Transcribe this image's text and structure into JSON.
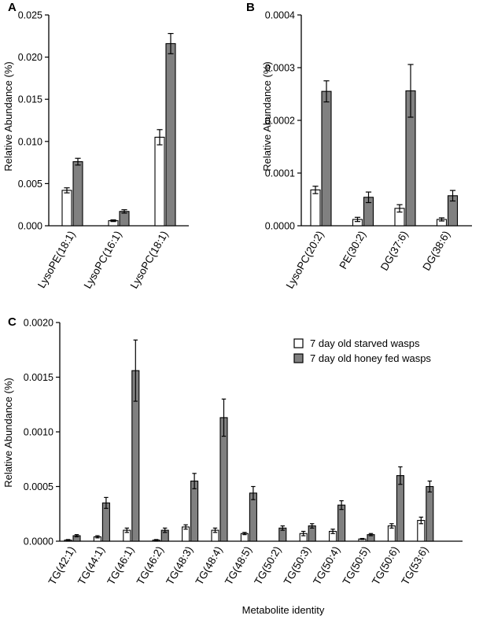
{
  "legend": {
    "starved": "7 day old starved wasps",
    "fed": "7 day old honey fed wasps"
  },
  "colors": {
    "starved": "#ffffff",
    "fed": "#808080",
    "stroke": "#000000"
  },
  "chart_data": [
    {
      "panel": "A",
      "type": "bar",
      "ylabel": "Relative Abundance (%)",
      "xlabel": "",
      "ylim": [
        0,
        0.025
      ],
      "yticks": [
        "0.000",
        "0.005",
        "0.010",
        "0.015",
        "0.020",
        "0.025"
      ],
      "categories": [
        "LysoPE(18:1)",
        "LysoPC(16:1)",
        "LysoPC(18:1)"
      ],
      "series": [
        {
          "name": "7 day old starved wasps",
          "values": [
            0.0042,
            0.0006,
            0.0105
          ],
          "errors": [
            0.0003,
            0.0001,
            0.0009
          ]
        },
        {
          "name": "7 day old honey fed wasps",
          "values": [
            0.0076,
            0.0017,
            0.0216
          ],
          "errors": [
            0.0004,
            0.0002,
            0.0012
          ]
        }
      ]
    },
    {
      "panel": "B",
      "type": "bar",
      "ylabel": "Relative Abundance (%)",
      "xlabel": "",
      "ylim": [
        0,
        0.0004
      ],
      "yticks": [
        "0.0000",
        "0.0001",
        "0.0002",
        "0.0003",
        "0.0004"
      ],
      "categories": [
        "LysoPC(20:2)",
        "PE(30:2)",
        "DG(37:6)",
        "DG(38:6)"
      ],
      "series": [
        {
          "name": "7 day old starved wasps",
          "values": [
            6.8e-05,
            1.2e-05,
            3.3e-05,
            1.2e-05
          ],
          "errors": [
            7e-06,
            4e-06,
            7e-06,
            3e-06
          ]
        },
        {
          "name": "7 day old honey fed wasps",
          "values": [
            0.000255,
            5.4e-05,
            0.000256,
            5.7e-05
          ],
          "errors": [
            2e-05,
            1e-05,
            5e-05,
            1e-05
          ]
        }
      ]
    },
    {
      "panel": "C",
      "type": "bar",
      "ylabel": "Relative Abundance (%)",
      "xlabel": "Metabolite identity",
      "ylim": [
        0,
        0.002
      ],
      "yticks": [
        "0.0000",
        "0.0005",
        "0.0010",
        "0.0015",
        "0.0020"
      ],
      "legend_position": "top-right",
      "categories": [
        "TG(42:1)",
        "TG(44:1)",
        "TG(46:1)",
        "TG(46:2)",
        "TG(48:3)",
        "TG(48:4)",
        "TG(48:5)",
        "TG(50:2)",
        "TG(50:3)",
        "TG(50:4)",
        "TG(50:5)",
        "TG(50:6)",
        "TG(53:6)"
      ],
      "series": [
        {
          "name": "7 day old starved wasps",
          "values": [
            1e-05,
            4e-05,
            0.0001,
            1e-05,
            0.00013,
            0.0001,
            7e-05,
            0.0,
            7e-05,
            9e-05,
            2e-05,
            0.00014,
            0.00019
          ],
          "errors": [
            5e-06,
            1e-05,
            2e-05,
            5e-06,
            2e-05,
            2e-05,
            1e-05,
            0.0,
            2e-05,
            2e-05,
            5e-06,
            2e-05,
            3e-05
          ]
        },
        {
          "name": "7 day old honey fed wasps",
          "values": [
            5e-05,
            0.00035,
            0.00156,
            0.0001,
            0.00055,
            0.00113,
            0.00044,
            0.00012,
            0.00014,
            0.00033,
            6e-05,
            0.0006,
            0.0005
          ],
          "errors": [
            1e-05,
            5e-05,
            0.00028,
            2e-05,
            7e-05,
            0.00017,
            6e-05,
            2e-05,
            2e-05,
            4e-05,
            1e-05,
            8e-05,
            5e-05
          ]
        }
      ]
    }
  ]
}
